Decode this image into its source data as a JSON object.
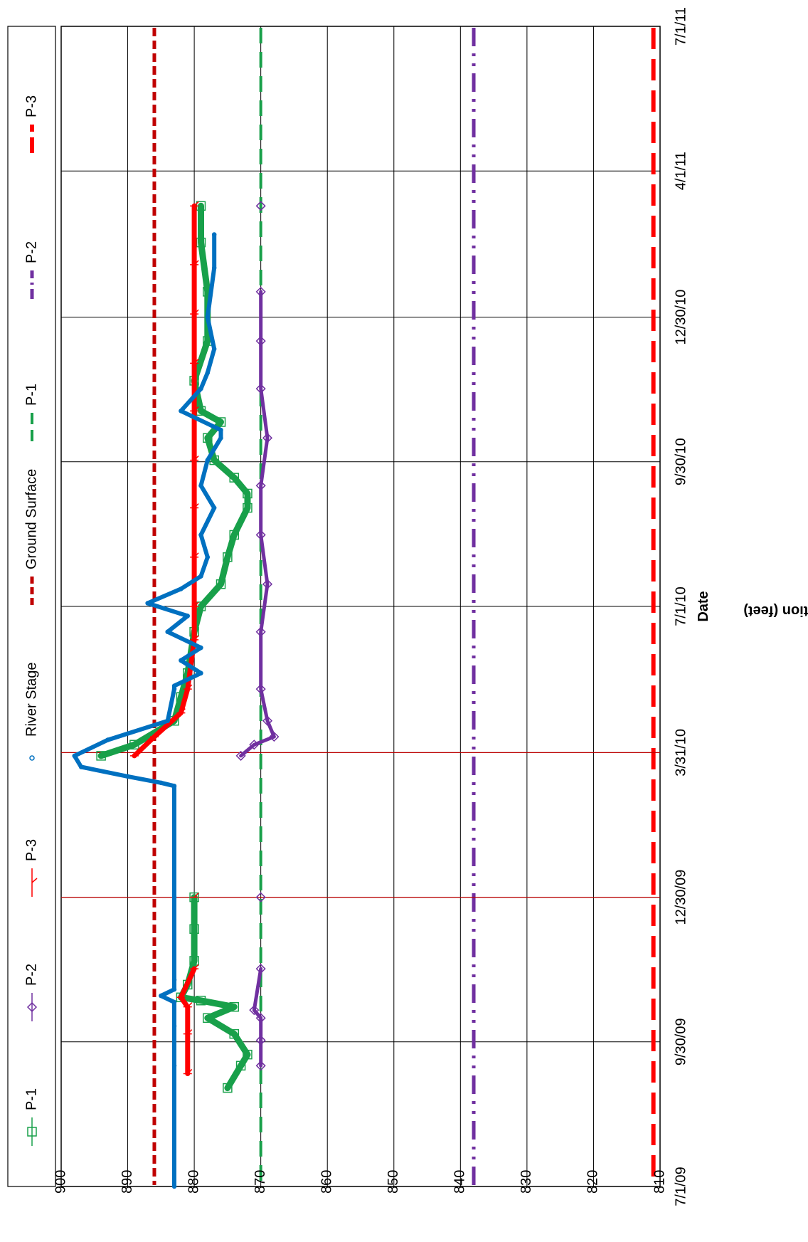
{
  "chart_data": {
    "type": "line",
    "orientation": "rotated-90-clockwise",
    "xlabel": "Date",
    "ylabel": "Elevation (feet)",
    "ylim": [
      810,
      900
    ],
    "y_ticks": [
      "810",
      "820",
      "830",
      "840",
      "850",
      "860",
      "870",
      "880",
      "890",
      "900"
    ],
    "x_ticks": [
      "7/1/09",
      "9/30/09",
      "12/30/09",
      "3/31/10",
      "7/1/10",
      "9/30/10",
      "12/30/10",
      "4/1/11",
      "7/1/11"
    ],
    "grid": true,
    "legend_position": "top",
    "legend": [
      {
        "label": "P-1",
        "color": "#18a04a",
        "style": "line-square"
      },
      {
        "label": "P-2",
        "color": "#7030a0",
        "style": "line-diamond"
      },
      {
        "label": "P-3",
        "color": "#ff0000",
        "style": "line-tick"
      },
      {
        "label": "River Stage",
        "color": "#0070c0",
        "style": "circle"
      },
      {
        "label": "Ground Surface",
        "color": "#c00000",
        "style": "dashed-thick"
      },
      {
        "label": "P-1",
        "color": "#18a04a",
        "style": "dashed-long"
      },
      {
        "label": "P-2",
        "color": "#7030a0",
        "style": "dash-dot"
      },
      {
        "label": "P-3",
        "color": "#ff0000",
        "style": "dashed-long-thick"
      }
    ],
    "reference_lines": [
      {
        "name": "Ground Surface",
        "y": 886,
        "color": "#c00000"
      },
      {
        "name": "P-1",
        "y": 870,
        "color": "#18a04a"
      },
      {
        "name": "P-2",
        "y": 838,
        "color": "#7030a0"
      },
      {
        "name": "P-3",
        "y": 811,
        "color": "#ff0000"
      }
    ],
    "series": [
      {
        "name": "River Stage",
        "color": "#0070c0",
        "x": [
          "2009-07-01",
          "2009-09-15",
          "2009-10-10",
          "2009-10-25",
          "2009-10-29",
          "2009-11-02",
          "2009-11-08",
          "2009-12-30",
          "2010-03-10",
          "2010-03-12",
          "2010-03-16",
          "2010-03-22",
          "2010-03-29",
          "2010-04-08",
          "2010-04-20",
          "2010-05-10",
          "2010-05-12",
          "2010-05-20",
          "2010-05-28",
          "2010-06-05",
          "2010-06-15",
          "2010-06-25",
          "2010-07-03",
          "2010-07-12",
          "2010-07-20",
          "2010-08-01",
          "2010-08-15",
          "2010-09-01",
          "2010-09-15",
          "2010-10-01",
          "2010-10-15",
          "2010-10-20",
          "2010-11-01",
          "2010-11-15",
          "2010-11-25",
          "2010-12-10",
          "2010-12-30",
          "2011-01-30",
          "2011-02-20"
        ],
        "y": [
          883,
          883,
          883,
          883,
          885,
          883,
          883,
          883,
          883,
          885,
          890,
          897,
          898,
          893,
          884,
          883,
          883,
          879,
          882,
          879,
          884,
          881,
          887,
          882,
          879,
          878,
          879,
          877,
          879,
          878,
          876,
          876,
          882,
          879,
          878,
          877,
          878,
          877,
          877
        ]
      },
      {
        "name": "P-1",
        "color": "#18a04a",
        "x": [
          "2009-09-01",
          "2009-09-15",
          "2009-09-22",
          "2009-10-05",
          "2009-10-15",
          "2009-10-22",
          "2009-10-26",
          "2009-10-28",
          "2009-11-05",
          "2009-11-20",
          "2009-12-10",
          "2009-12-30",
          "2010-03-29",
          "2010-04-05",
          "2010-04-20",
          "2010-05-05",
          "2010-05-20",
          "2010-06-15",
          "2010-07-01",
          "2010-07-15",
          "2010-08-01",
          "2010-08-15",
          "2010-09-01",
          "2010-09-10",
          "2010-09-20",
          "2010-10-01",
          "2010-10-15",
          "2010-10-25",
          "2010-11-01",
          "2010-11-20",
          "2010-12-15",
          "2011-01-15",
          "2011-02-15",
          "2011-03-10"
        ],
        "y": [
          875,
          873,
          872,
          874,
          878,
          874,
          879,
          882,
          881,
          880,
          880,
          880,
          894,
          889,
          883,
          882,
          881,
          880,
          879,
          876,
          875,
          874,
          872,
          872,
          874,
          877,
          878,
          876,
          879,
          880,
          878,
          878,
          879,
          879
        ]
      },
      {
        "name": "P-2",
        "color": "#7030a0",
        "x": [
          "2009-09-15",
          "2009-10-01",
          "2009-10-15",
          "2009-10-20",
          "2009-11-15",
          "2009-12-30",
          "2010-03-29",
          "2010-04-05",
          "2010-04-10",
          "2010-04-20",
          "2010-05-10",
          "2010-06-15",
          "2010-07-15",
          "2010-08-15",
          "2010-09-15",
          "2010-10-15",
          "2010-11-15",
          "2010-12-15",
          "2011-01-15",
          "2011-03-10"
        ],
        "y": [
          870,
          870,
          870,
          871,
          870,
          870,
          873,
          871,
          868,
          869,
          870,
          870,
          869,
          870,
          870,
          869,
          870,
          870,
          870,
          870
        ]
      },
      {
        "name": "P-3",
        "color": "#ff0000",
        "x": [
          "2009-09-10",
          "2009-10-05",
          "2009-10-22",
          "2009-10-28",
          "2009-11-15",
          "2009-12-30",
          "2010-03-29",
          "2010-04-10",
          "2010-04-25",
          "2010-05-10",
          "2010-06-10",
          "2010-07-01",
          "2010-08-01",
          "2010-09-01",
          "2010-10-01",
          "2010-11-01",
          "2010-12-01",
          "2011-01-01",
          "2011-02-01",
          "2011-03-10"
        ],
        "y": [
          881,
          881,
          881,
          882,
          880,
          880,
          889,
          886,
          882,
          881,
          880,
          880,
          880,
          880,
          880,
          880,
          880,
          880,
          880,
          880
        ]
      }
    ]
  }
}
